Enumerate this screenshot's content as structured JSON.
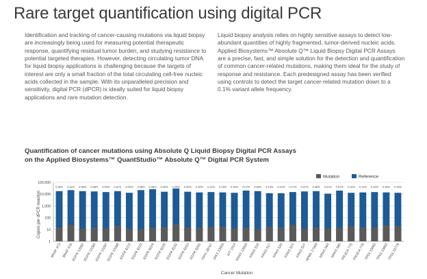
{
  "header": {
    "title": "Rare target quantification using digital PCR"
  },
  "body": {
    "left_paragraph": "Identification and tracking of cancer-causing mutations via liquid biopsy are increasingly being used for measuring potential therapeutic response, quantifying residual tumor burden, and studying resistance to potential targeted therapies. However, detecting circulating tumor DNA for liquid biopsy applications is challenging because the targets of interest are only a small fraction of the total circulating cell-free nucleic acids collected in the sample. With its unparalleled precision and sensitivity, digital PCR (dPCR) is ideally suited for liquid biopsy applications and rare mutation detection.",
    "right_paragraph": "Liquid biopsy analysis relies on highly sensitive assays to detect low-abundant quantities of highly fragmented, tumor-derived nucleic acids. Applied Biosystems™ Absolute Q™ Liquid Biopsy Digital PCR Assays are a precise, fast, and simple solution for the detection and quantification of common cancer-related mutations, making them ideal for the study of response and resistance. Each predesigned assay has been verified using controls to detect the target cancer-related mutation down to a 0.1% variant allele frequency."
  },
  "chart_heading": {
    "line1": "Quantification of cancer mutations using Absolute Q Liquid Biopsy Digital PCR Assays",
    "line2": "on the Applied Biosystems™ QuantStudio™ Absolute Q™ Digital PCR System"
  },
  "chart_data": {
    "type": "bar",
    "xlabel": "Cancer Mutation",
    "ylabel": "Copies per dPCR reaction",
    "yscale": "log",
    "ylim": [
      1,
      100000
    ],
    "yticks": [
      1,
      10,
      100,
      1000,
      10000,
      100000
    ],
    "ytick_labels": [
      "1",
      "10",
      "100",
      "1,000",
      "10,000",
      "100,000"
    ],
    "grid": true,
    "legend_position": "top-right",
    "categories": [
      "BRAF 473",
      "BRAF 476",
      "EGFR 12282",
      "EGFR 12284",
      "EGFR 12287",
      "EGFR 12288",
      "EGFR 6213",
      "EGFR 6223",
      "EGFR 6224",
      "EGFR 6225",
      "EGFR 6232",
      "EGFR 6253",
      "EGFR 6255",
      "IDH1 28747",
      "JAK2 12600",
      "KIT 1314",
      "KRAS 12600",
      "KRAS 516",
      "KRAS 517",
      "KRAS 520",
      "KRAS 521",
      "KRAS 527",
      "NPM1 17359",
      "NRAS 564",
      "NRAS 580",
      "PIK3CA 775",
      "PIK3CA 776",
      "TP53 10660",
      "TP53 10662",
      "TP53 10779"
    ],
    "annotations": [
      "0.08%",
      "0.11%",
      "0.06%",
      "0.08%",
      "0.09%",
      "0.11%",
      "0.09%",
      "0.05%",
      "0.05%",
      "0.09%",
      "0.09%",
      "0.09%",
      "0.10%",
      "0.11%",
      "0.13%",
      "0.10%",
      "0.07%",
      "0.06%",
      "0.14%",
      "0.12%",
      "0.17%",
      "0.07%",
      "0.08%",
      "0.11%",
      "0.07%",
      "0.15%",
      "0.11%",
      "0.10%",
      "0.16%",
      "0.15%"
    ],
    "series": [
      {
        "name": "Mutation",
        "color": "#5a5a5a",
        "values": [
          15,
          25,
          12,
          14,
          13,
          20,
          12,
          11,
          14,
          15,
          28,
          15,
          14,
          16,
          18,
          13,
          14,
          11,
          17,
          14,
          25,
          12,
          15,
          12,
          14,
          20,
          15,
          15,
          22,
          20
        ]
      },
      {
        "name": "Reference",
        "color": "#1d5b97",
        "values": [
          18000,
          22000,
          18000,
          17000,
          15000,
          18000,
          13000,
          22000,
          26000,
          16000,
          30000,
          16000,
          14000,
          15000,
          14000,
          13000,
          20000,
          18000,
          12000,
          12000,
          15000,
          17000,
          18000,
          11000,
          20000,
          13000,
          14000,
          15000,
          14000,
          13000
        ]
      }
    ]
  }
}
